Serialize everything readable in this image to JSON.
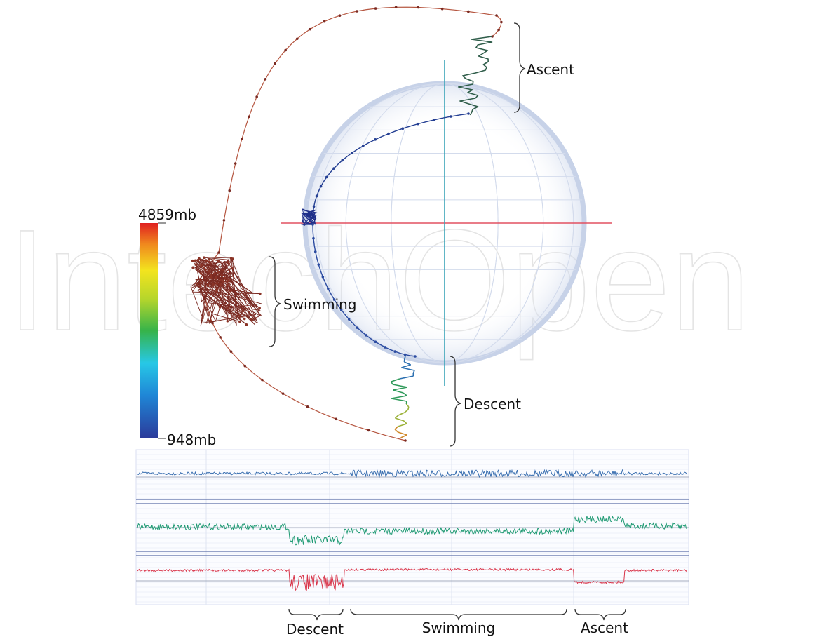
{
  "chart_data": [
    {
      "type": "scatter",
      "subtype": "3d-trajectory",
      "colorbar": {
        "max_label": "4859mb",
        "min_label": "948mb",
        "colormap": "jet"
      },
      "annotations": [
        "Ascent",
        "Swimming",
        "Descent"
      ]
    },
    {
      "type": "line",
      "channels": [
        {
          "color": "#3a6fb0"
        },
        {
          "color": "#1f9a73"
        },
        {
          "color": "#d9364b"
        }
      ],
      "segments": [
        "Descent",
        "Swimming",
        "Ascent"
      ]
    }
  ],
  "watermark": "IntechOpen"
}
